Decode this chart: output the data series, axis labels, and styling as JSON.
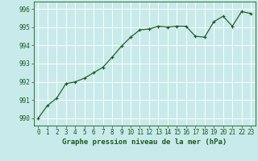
{
  "x": [
    0,
    1,
    2,
    3,
    4,
    5,
    6,
    7,
    8,
    9,
    10,
    11,
    12,
    13,
    14,
    15,
    16,
    17,
    18,
    19,
    20,
    21,
    22,
    23
  ],
  "y": [
    990.0,
    990.7,
    991.1,
    991.9,
    992.0,
    992.2,
    992.5,
    992.8,
    993.35,
    993.95,
    994.45,
    994.85,
    994.9,
    995.05,
    995.0,
    995.05,
    995.05,
    994.5,
    994.45,
    995.3,
    995.6,
    995.05,
    995.85,
    995.75
  ],
  "line_color": "#1a5c1a",
  "marker_color": "#1a5c1a",
  "bg_color": "#c8eaea",
  "grid_color": "#ffffff",
  "ylabel_ticks": [
    990,
    991,
    992,
    993,
    994,
    995,
    996
  ],
  "xlabel_ticks": [
    0,
    1,
    2,
    3,
    4,
    5,
    6,
    7,
    8,
    9,
    10,
    11,
    12,
    13,
    14,
    15,
    16,
    17,
    18,
    19,
    20,
    21,
    22,
    23
  ],
  "xlabel": "Graphe pression niveau de la mer (hPa)",
  "ylim": [
    989.6,
    996.4
  ],
  "xlim": [
    -0.5,
    23.5
  ],
  "xlabel_fontsize": 6.5,
  "tick_fontsize": 5.5,
  "tick_color": "#1a5c1a",
  "axis_color": "#1a5c1a"
}
